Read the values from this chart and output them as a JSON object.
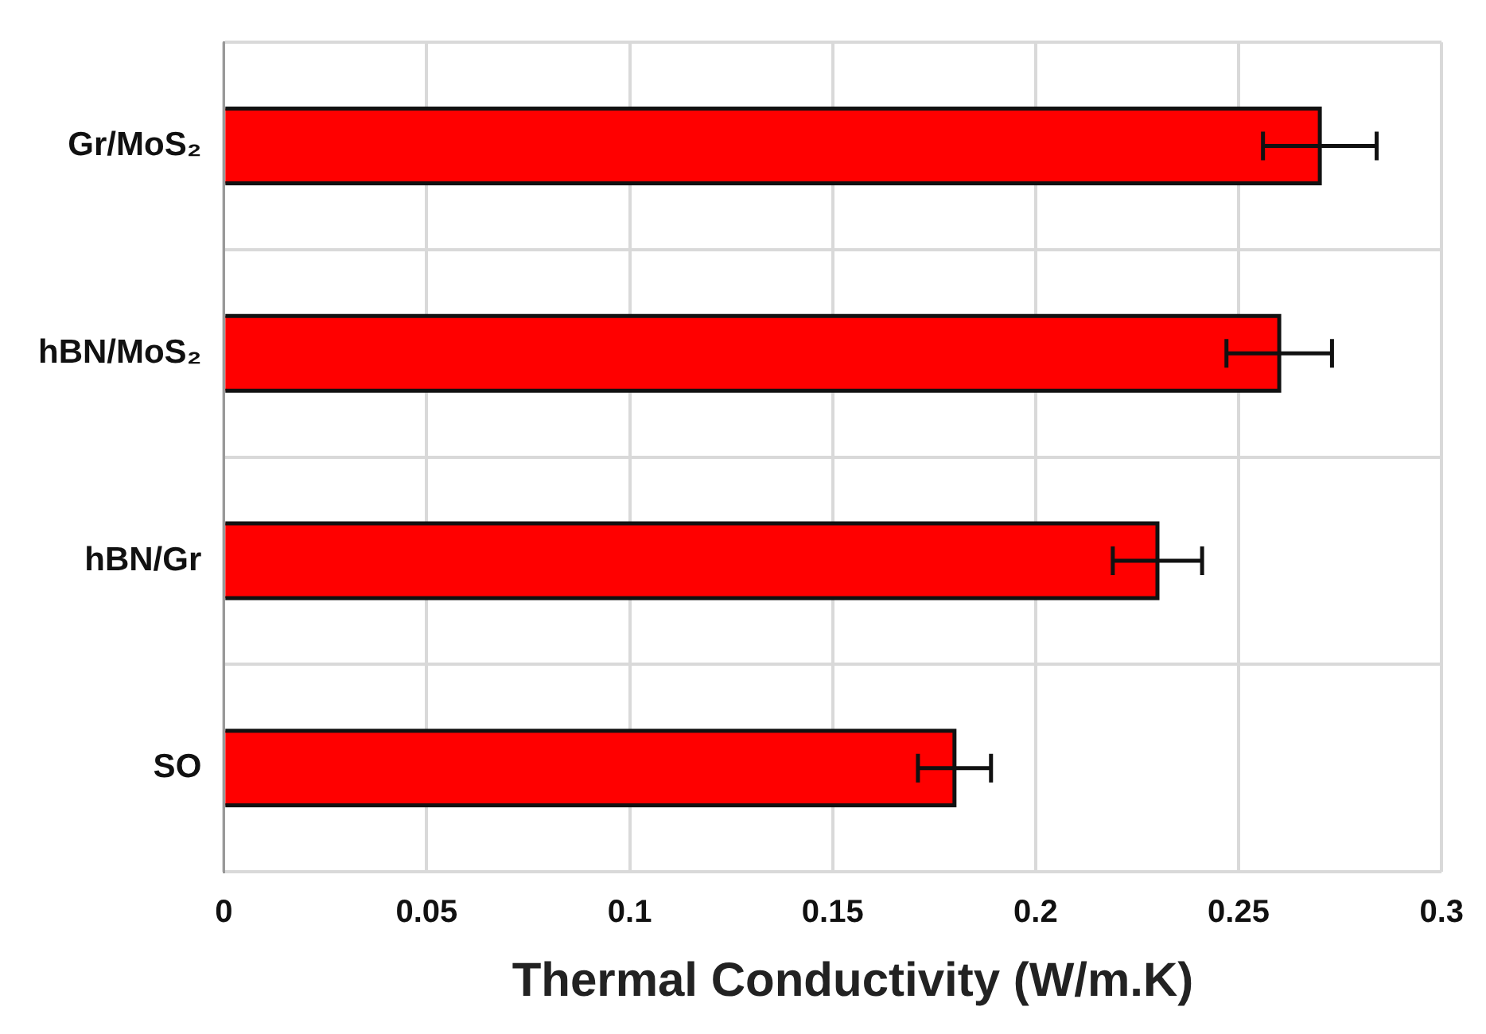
{
  "chart_data": {
    "type": "bar",
    "orientation": "horizontal",
    "xlabel": "Thermal Conductivity (W/m.K)",
    "categories": [
      "Gr/MoS₂",
      "hBN/MoS₂",
      "hBN/Gr",
      "SO"
    ],
    "series": [
      {
        "color": "#ff0000",
        "values": [
          0.27,
          0.26,
          0.23,
          0.18
        ],
        "errors": [
          0.014,
          0.013,
          0.011,
          0.009
        ]
      }
    ],
    "xlim": [
      0,
      0.3
    ],
    "xticks": [
      0,
      0.05,
      0.1,
      0.15,
      0.2,
      0.25,
      0.3
    ],
    "grid": true
  }
}
